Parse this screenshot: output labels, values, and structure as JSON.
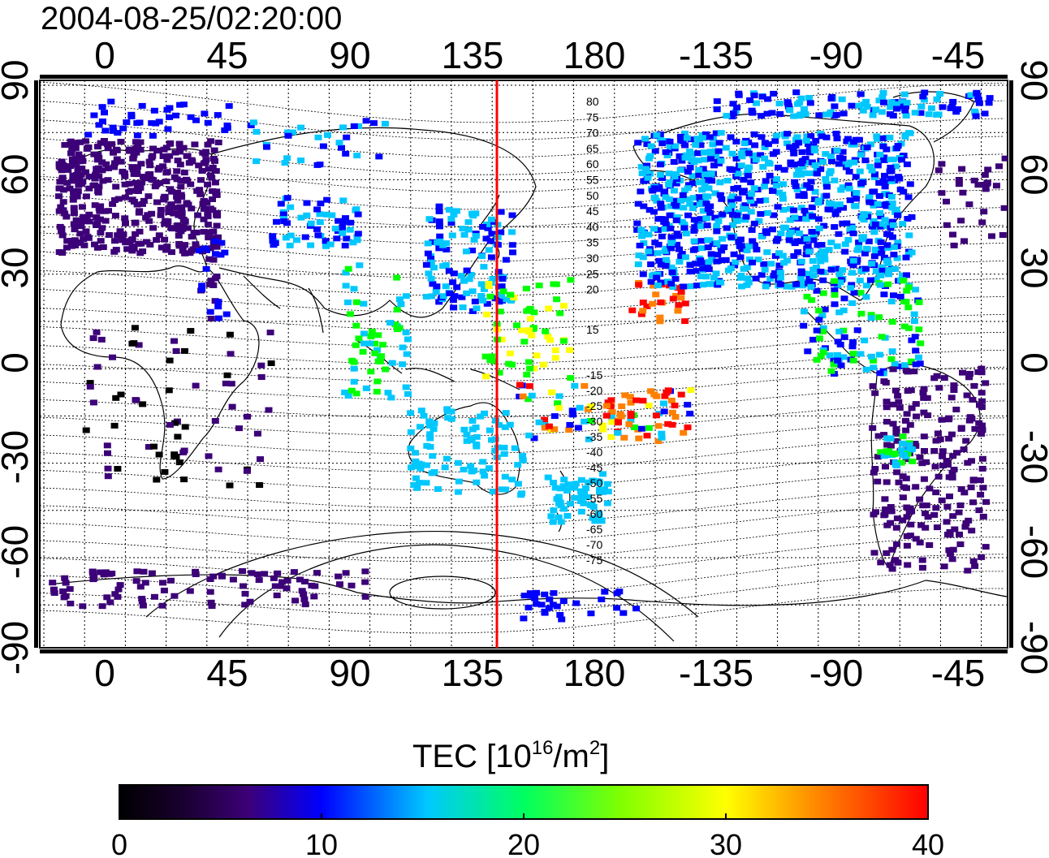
{
  "title": "2004-08-25/02:20:00",
  "map": {
    "lon_ticks": [
      "0",
      "45",
      "90",
      "135",
      "180",
      "-135",
      "-90",
      "-45"
    ],
    "lat_ticks_left": [
      "90",
      "60",
      "30",
      "0",
      "-30",
      "-60",
      "-90"
    ],
    "lat_ticks_right": [
      "90",
      "60",
      "30",
      "0",
      "-30",
      "-60",
      "-90"
    ],
    "meridian_line_color": "#ff0000",
    "contour_labels_north": [
      "80",
      "75",
      "70",
      "65",
      "60",
      "55",
      "50",
      "45",
      "40",
      "35",
      "30",
      "25",
      "20",
      "15"
    ],
    "contour_labels_south": [
      "-15",
      "-20",
      "-25",
      "-30",
      "-35",
      "-40",
      "-45",
      "-50",
      "-55",
      "-60",
      "-65",
      "-70",
      "-75"
    ]
  },
  "colorbar": {
    "label_main": "TEC  [10",
    "label_sup1": "16",
    "label_mid": "/m",
    "label_sup2": "2",
    "label_end": "]",
    "ticks": [
      "0",
      "10",
      "20",
      "30",
      "40"
    ],
    "min": 0,
    "max": 40,
    "colors": [
      "#000000",
      "#3c0078",
      "#0000ff",
      "#00c8ff",
      "#00ff00",
      "#ffff00",
      "#ff8000",
      "#ff0000"
    ]
  }
}
